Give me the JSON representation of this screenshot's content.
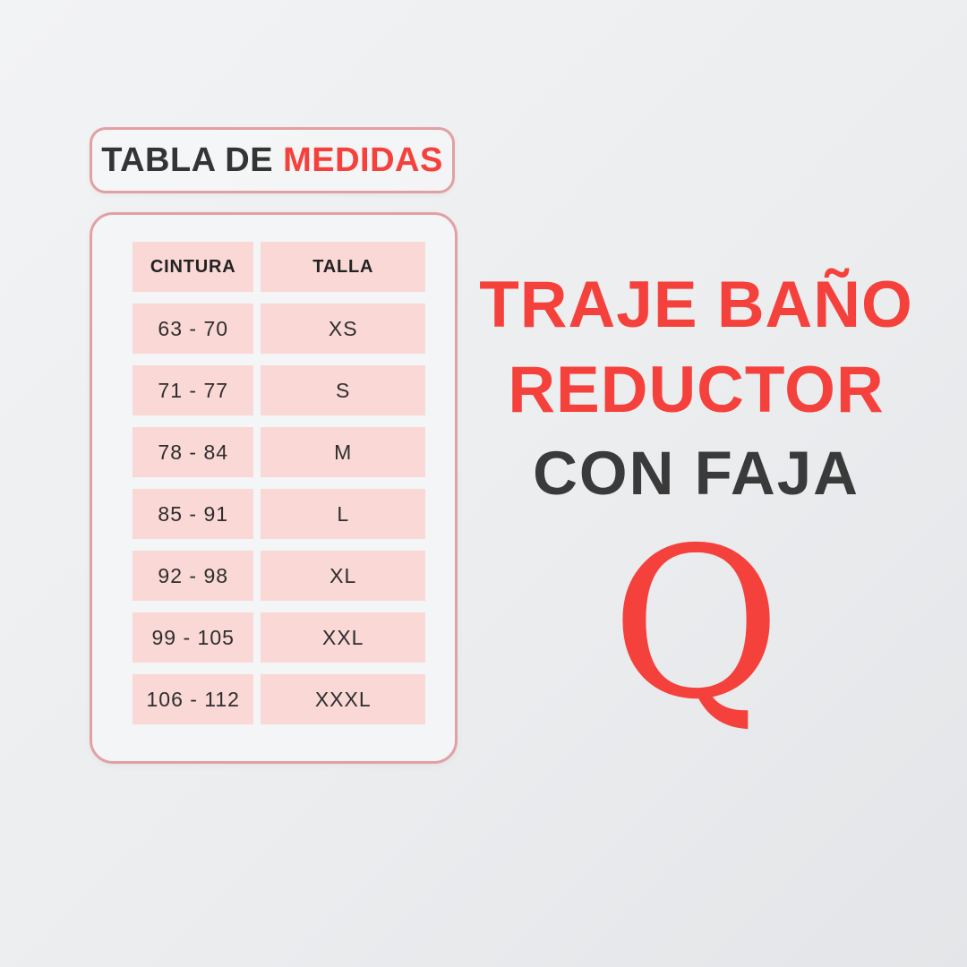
{
  "title_box": {
    "dark": "TABLA DE",
    "red": "MEDIDAS"
  },
  "headline": {
    "line1": "TRAJE BAÑO",
    "line2": "REDUCTOR",
    "line3": "CON FAJA"
  },
  "brand": {
    "letter": "Q"
  },
  "colors": {
    "accent_red": "#f5413c",
    "dark_text": "#343434",
    "pink_cell": "#f9d8d5",
    "pink_border": "#e2a0a3",
    "background": "#ebedef"
  },
  "chart_data": {
    "type": "table",
    "title": "TABLA DE MEDIDAS",
    "columns": [
      "CINTURA",
      "TALLA"
    ],
    "rows": [
      [
        "63 - 70",
        "XS"
      ],
      [
        "71 - 77",
        "S"
      ],
      [
        "78 - 84",
        "M"
      ],
      [
        "85 - 91",
        "L"
      ],
      [
        "92 - 98",
        "XL"
      ],
      [
        "99 - 105",
        "XXL"
      ],
      [
        "106 - 112",
        "XXXL"
      ]
    ]
  }
}
